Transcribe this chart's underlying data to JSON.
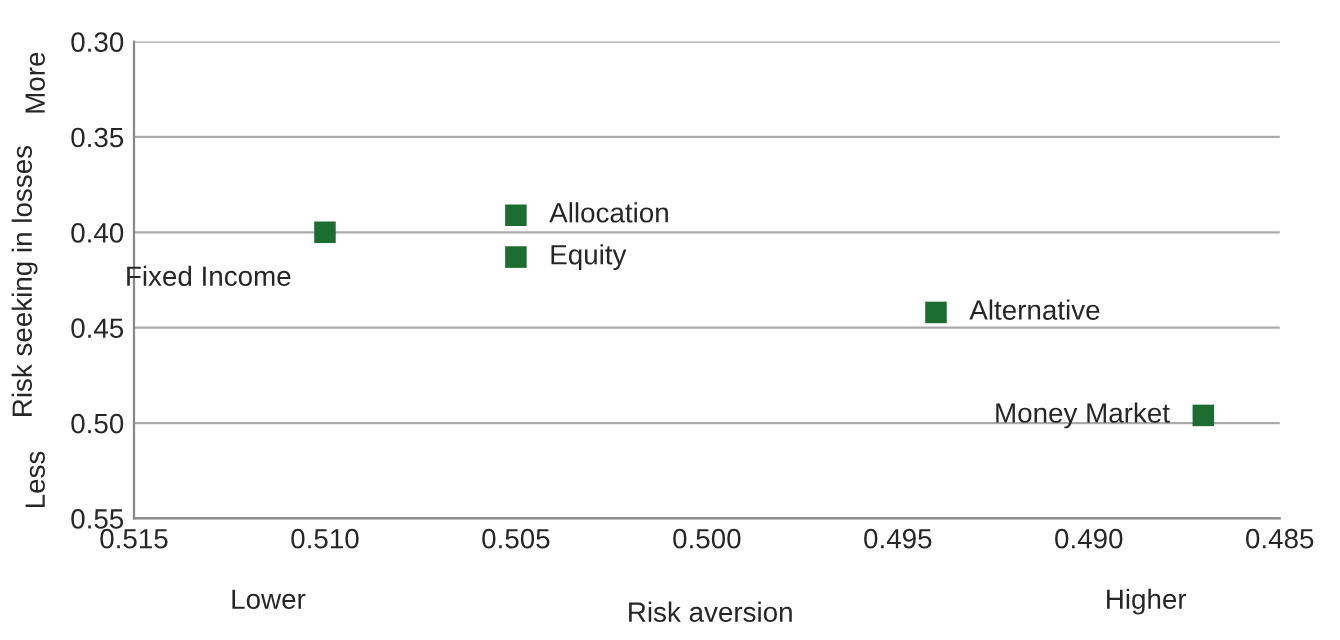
{
  "chart_data": {
    "type": "scatter",
    "xlabel": "Risk aversion",
    "ylabel": "Risk seeking in losses",
    "series": [
      {
        "name": "Fixed Income",
        "color": "#1b6e30",
        "x": [
          0.51
        ],
        "values": [
          0.4
        ]
      },
      {
        "name": "Allocation",
        "color": "#1b6e30",
        "x": [
          0.505
        ],
        "values": [
          0.391
        ]
      },
      {
        "name": "Equity",
        "color": "#1b6e30",
        "x": [
          0.505
        ],
        "values": [
          0.413
        ]
      },
      {
        "name": "Alternative",
        "color": "#1b6e30",
        "x": [
          0.494
        ],
        "values": [
          0.442
        ]
      },
      {
        "name": "Money Market",
        "color": "#1b6e30",
        "x": [
          0.487
        ],
        "values": [
          0.496
        ]
      }
    ],
    "xlim": [
      0.515,
      0.485
    ],
    "xticks": [
      {
        "value": 0.515,
        "label": "0.515"
      },
      {
        "value": 0.51,
        "label": "0.510"
      },
      {
        "value": 0.505,
        "label": "0.505"
      },
      {
        "value": 0.5,
        "label": "0.500"
      },
      {
        "value": 0.495,
        "label": "0.495"
      },
      {
        "value": 0.49,
        "label": "0.490"
      },
      {
        "value": 0.485,
        "label": "0.485"
      }
    ],
    "ylim": [
      0.55,
      0.3
    ],
    "yticks": [
      {
        "value": 0.3,
        "label": "0.30"
      },
      {
        "value": 0.35,
        "label": "0.35"
      },
      {
        "value": 0.4,
        "label": "0.40"
      },
      {
        "value": 0.45,
        "label": "0.45"
      },
      {
        "value": 0.5,
        "label": "0.50"
      },
      {
        "value": 0.55,
        "label": "0.55"
      }
    ],
    "annotations": [
      "More",
      "Less",
      "Lower",
      "Higher"
    ],
    "grid": "y",
    "marker": "square",
    "legend": false
  }
}
